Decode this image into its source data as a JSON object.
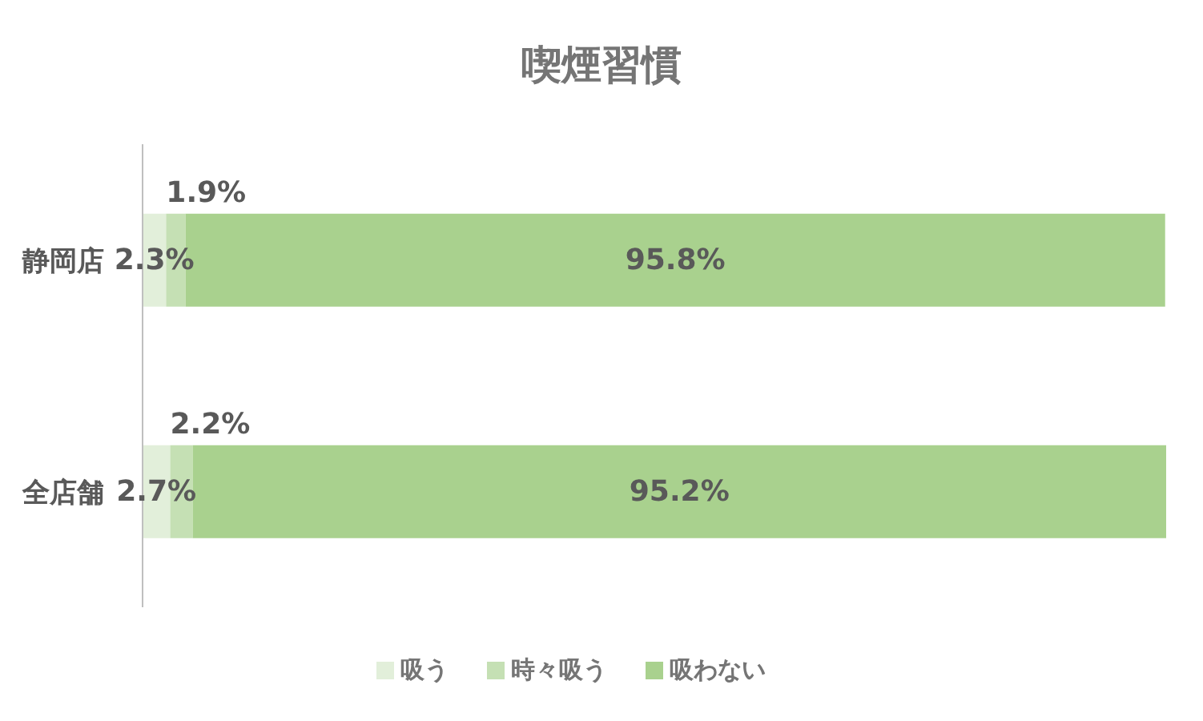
{
  "chart_data": {
    "type": "bar",
    "orientation": "horizontal",
    "stacked": true,
    "title": "喫煙習慣",
    "categories": [
      "静岡店",
      "全店舗"
    ],
    "series": [
      {
        "name": "吸う",
        "color": "#e2efda",
        "values": [
          2.3,
          2.7
        ],
        "value_labels": [
          "2.3%",
          "2.7%"
        ]
      },
      {
        "name": "時々吸う",
        "color": "#c5e0b4",
        "values": [
          1.9,
          2.2
        ],
        "value_labels": [
          "1.9%",
          "2.2%"
        ]
      },
      {
        "name": "吸わない",
        "color": "#a9d18e",
        "values": [
          95.8,
          95.2
        ],
        "value_labels": [
          "95.8%",
          "95.2%"
        ]
      }
    ],
    "tick_labels": "y",
    "legend": "bottom"
  }
}
